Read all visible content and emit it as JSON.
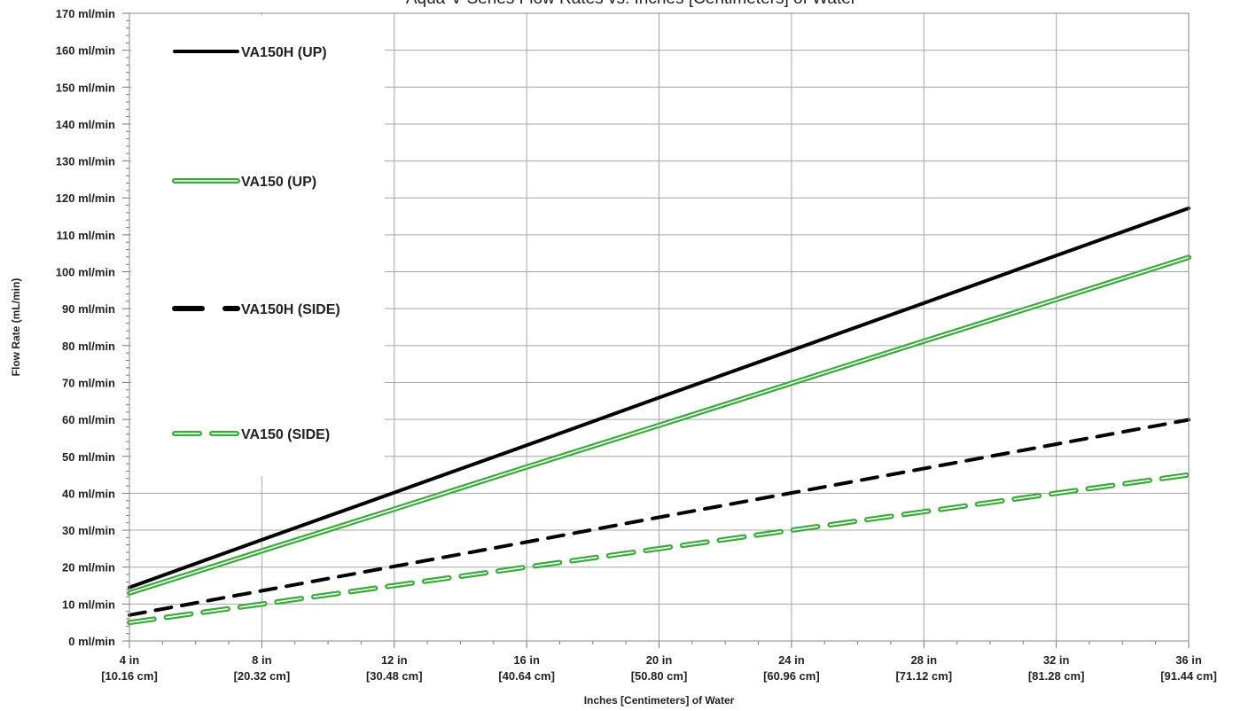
{
  "chart_data": {
    "type": "line",
    "title": "Aqua-V Series Flow Rates vs. Inches [Centimeters] of Water",
    "xlabel": "Inches [Centimeters] of Water",
    "ylabel": "Flow Rate (mL/min)",
    "xlim": [
      4,
      36
    ],
    "ylim": [
      0,
      170
    ],
    "grid": true,
    "legend_position": "top-left",
    "y_ticks": [
      {
        "value": 0,
        "label": "0 ml/min"
      },
      {
        "value": 10,
        "label": "10 ml/min"
      },
      {
        "value": 20,
        "label": "20 ml/min"
      },
      {
        "value": 30,
        "label": "30 ml/min"
      },
      {
        "value": 40,
        "label": "40 ml/min"
      },
      {
        "value": 50,
        "label": "50 ml/min"
      },
      {
        "value": 60,
        "label": "60 ml/min"
      },
      {
        "value": 70,
        "label": "70 ml/min"
      },
      {
        "value": 80,
        "label": "80 ml/min"
      },
      {
        "value": 90,
        "label": "90 ml/min"
      },
      {
        "value": 100,
        "label": "100 ml/min"
      },
      {
        "value": 110,
        "label": "110 ml/min"
      },
      {
        "value": 120,
        "label": "120 ml/min"
      },
      {
        "value": 130,
        "label": "130 ml/min"
      },
      {
        "value": 140,
        "label": "140 ml/min"
      },
      {
        "value": 150,
        "label": "150 ml/min"
      },
      {
        "value": 160,
        "label": "160 ml/min"
      },
      {
        "value": 170,
        "label": "170 ml/min"
      }
    ],
    "x_ticks": [
      {
        "value": 4,
        "label": "4 in",
        "sublabel": "[10.16 cm]"
      },
      {
        "value": 8,
        "label": "8 in",
        "sublabel": "[20.32 cm]"
      },
      {
        "value": 12,
        "label": "12 in",
        "sublabel": "[30.48 cm]"
      },
      {
        "value": 16,
        "label": "16 in",
        "sublabel": "[40.64 cm]"
      },
      {
        "value": 20,
        "label": "20 in",
        "sublabel": "[50.80 cm]"
      },
      {
        "value": 24,
        "label": "24 in",
        "sublabel": "[60.96 cm]"
      },
      {
        "value": 28,
        "label": "28 in",
        "sublabel": "[71.12 cm]"
      },
      {
        "value": 32,
        "label": "32 in",
        "sublabel": "[81.28 cm]"
      },
      {
        "value": 36,
        "label": "36 in",
        "sublabel": "[91.44 cm]"
      }
    ],
    "series": [
      {
        "name": "VA150H (UP)",
        "style": "solid",
        "color": "#000000",
        "x": [
          4,
          8,
          12,
          16,
          20,
          24,
          28,
          32,
          36
        ],
        "y": [
          14.5,
          27.4,
          40.2,
          53.0,
          65.9,
          78.7,
          91.5,
          104.4,
          117.2
        ]
      },
      {
        "name": "VA150 (UP)",
        "style": "double-solid",
        "color": "#3aaa3a",
        "x": [
          4,
          8,
          12,
          16,
          20,
          24,
          28,
          32,
          36
        ],
        "y": [
          13.0,
          24.4,
          35.7,
          47.1,
          58.4,
          69.8,
          81.2,
          92.5,
          103.9
        ]
      },
      {
        "name": "VA150H (SIDE)",
        "style": "dashed",
        "color": "#000000",
        "x": [
          4,
          8,
          12,
          16,
          20,
          24,
          28,
          32,
          36
        ],
        "y": [
          7.0,
          13.6,
          20.2,
          26.8,
          33.5,
          40.1,
          46.7,
          53.3,
          59.9
        ]
      },
      {
        "name": "VA150 (SIDE)",
        "style": "double-dashed",
        "color": "#3aaa3a",
        "x": [
          4,
          8,
          12,
          16,
          20,
          24,
          28,
          32,
          36
        ],
        "y": [
          5.0,
          10.0,
          15.0,
          20.0,
          25.0,
          30.0,
          35.0,
          40.0,
          45.0
        ]
      }
    ]
  }
}
